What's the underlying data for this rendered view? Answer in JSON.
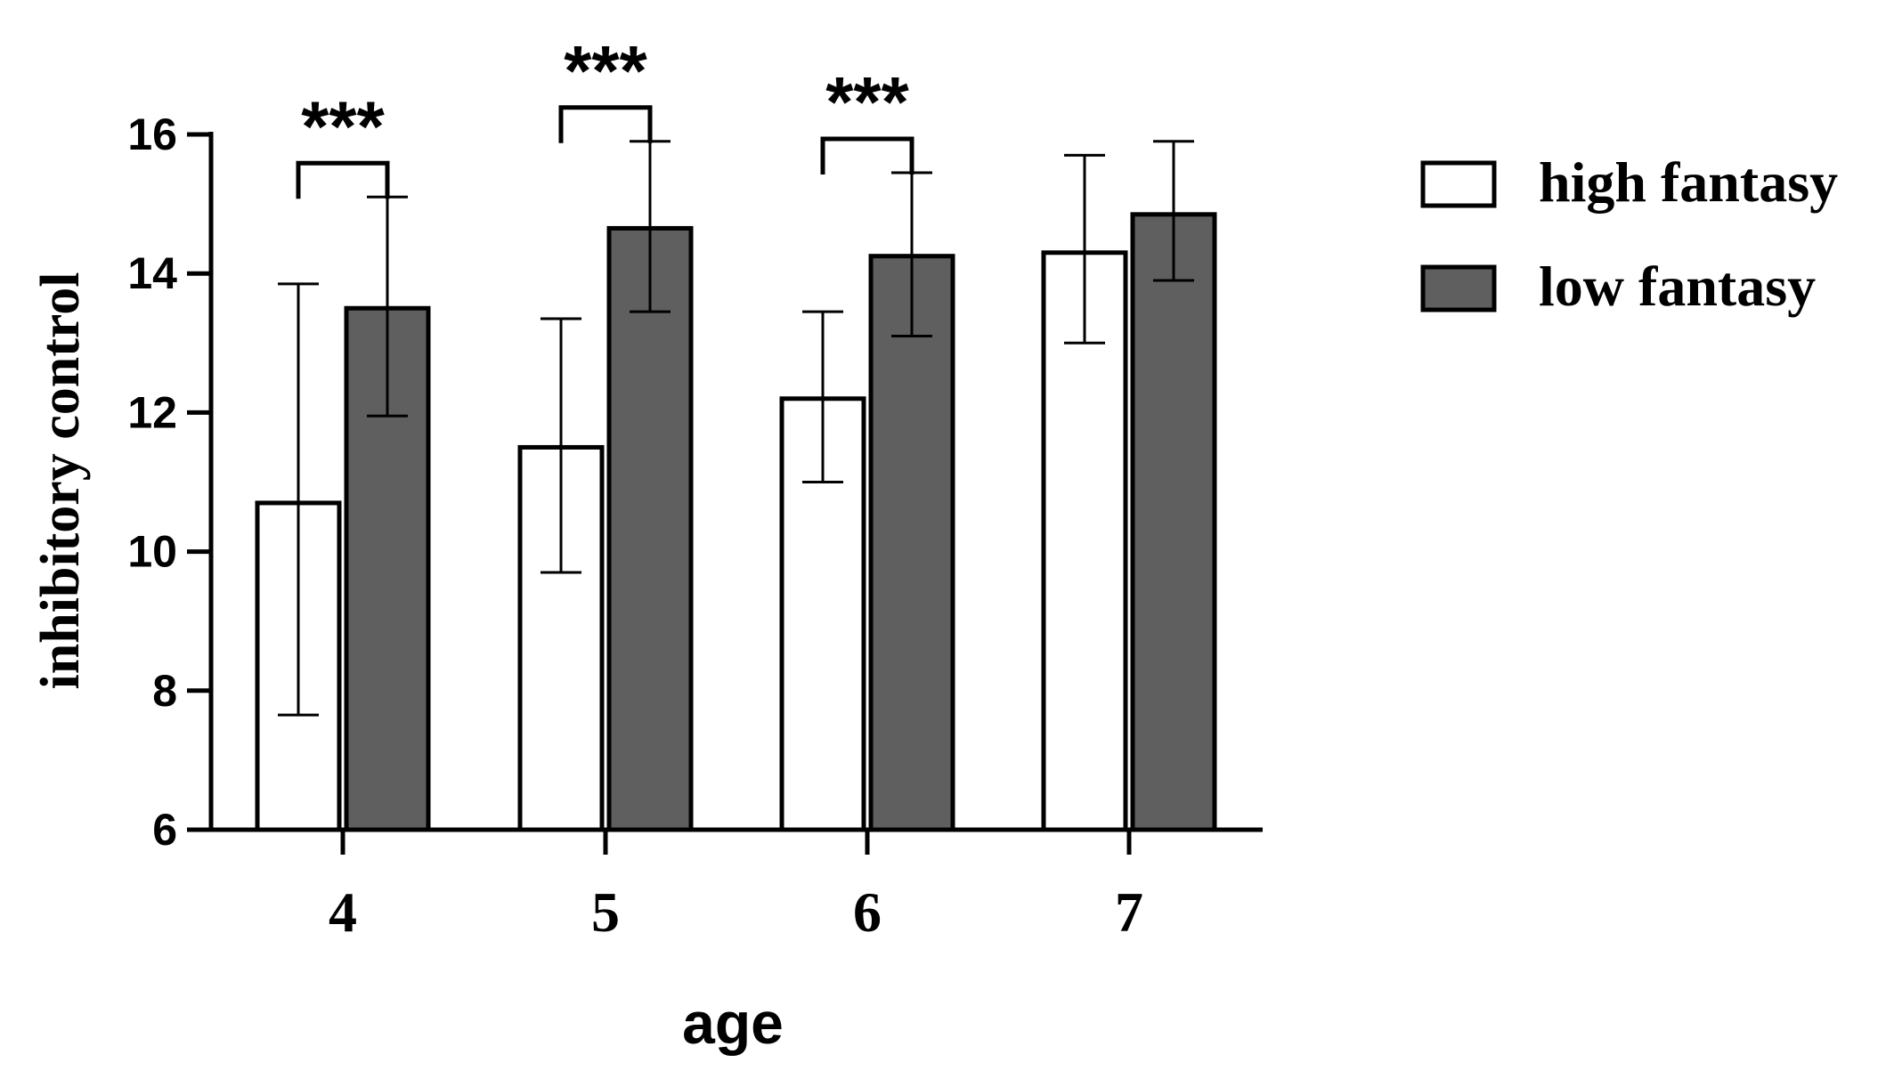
{
  "chart_data": {
    "type": "bar",
    "title": "",
    "xlabel": "age",
    "ylabel": "inhibitory control",
    "ylim": [
      6,
      16
    ],
    "yticks": [
      "6",
      "8",
      "10",
      "12",
      "14",
      "16"
    ],
    "categories": [
      "4",
      "5",
      "6",
      "7"
    ],
    "series": [
      {
        "name": "high fantasy",
        "color": "#ffffff",
        "values": [
          10.7,
          11.5,
          12.2,
          14.3
        ],
        "err_low": [
          7.65,
          9.7,
          11.0,
          13.0
        ],
        "err_high": [
          13.85,
          13.35,
          13.45,
          15.7
        ]
      },
      {
        "name": "low fantasy",
        "color": "#5f5f5f",
        "values": [
          13.5,
          14.65,
          14.25,
          14.85
        ],
        "err_low": [
          11.95,
          13.45,
          13.1,
          13.9
        ],
        "err_high": [
          15.1,
          15.9,
          15.45,
          15.9
        ]
      }
    ],
    "significance": [
      {
        "category": "4",
        "label": "***"
      },
      {
        "category": "5",
        "label": "***"
      },
      {
        "category": "6",
        "label": "***"
      }
    ],
    "legend_position": "right",
    "grid": false
  }
}
